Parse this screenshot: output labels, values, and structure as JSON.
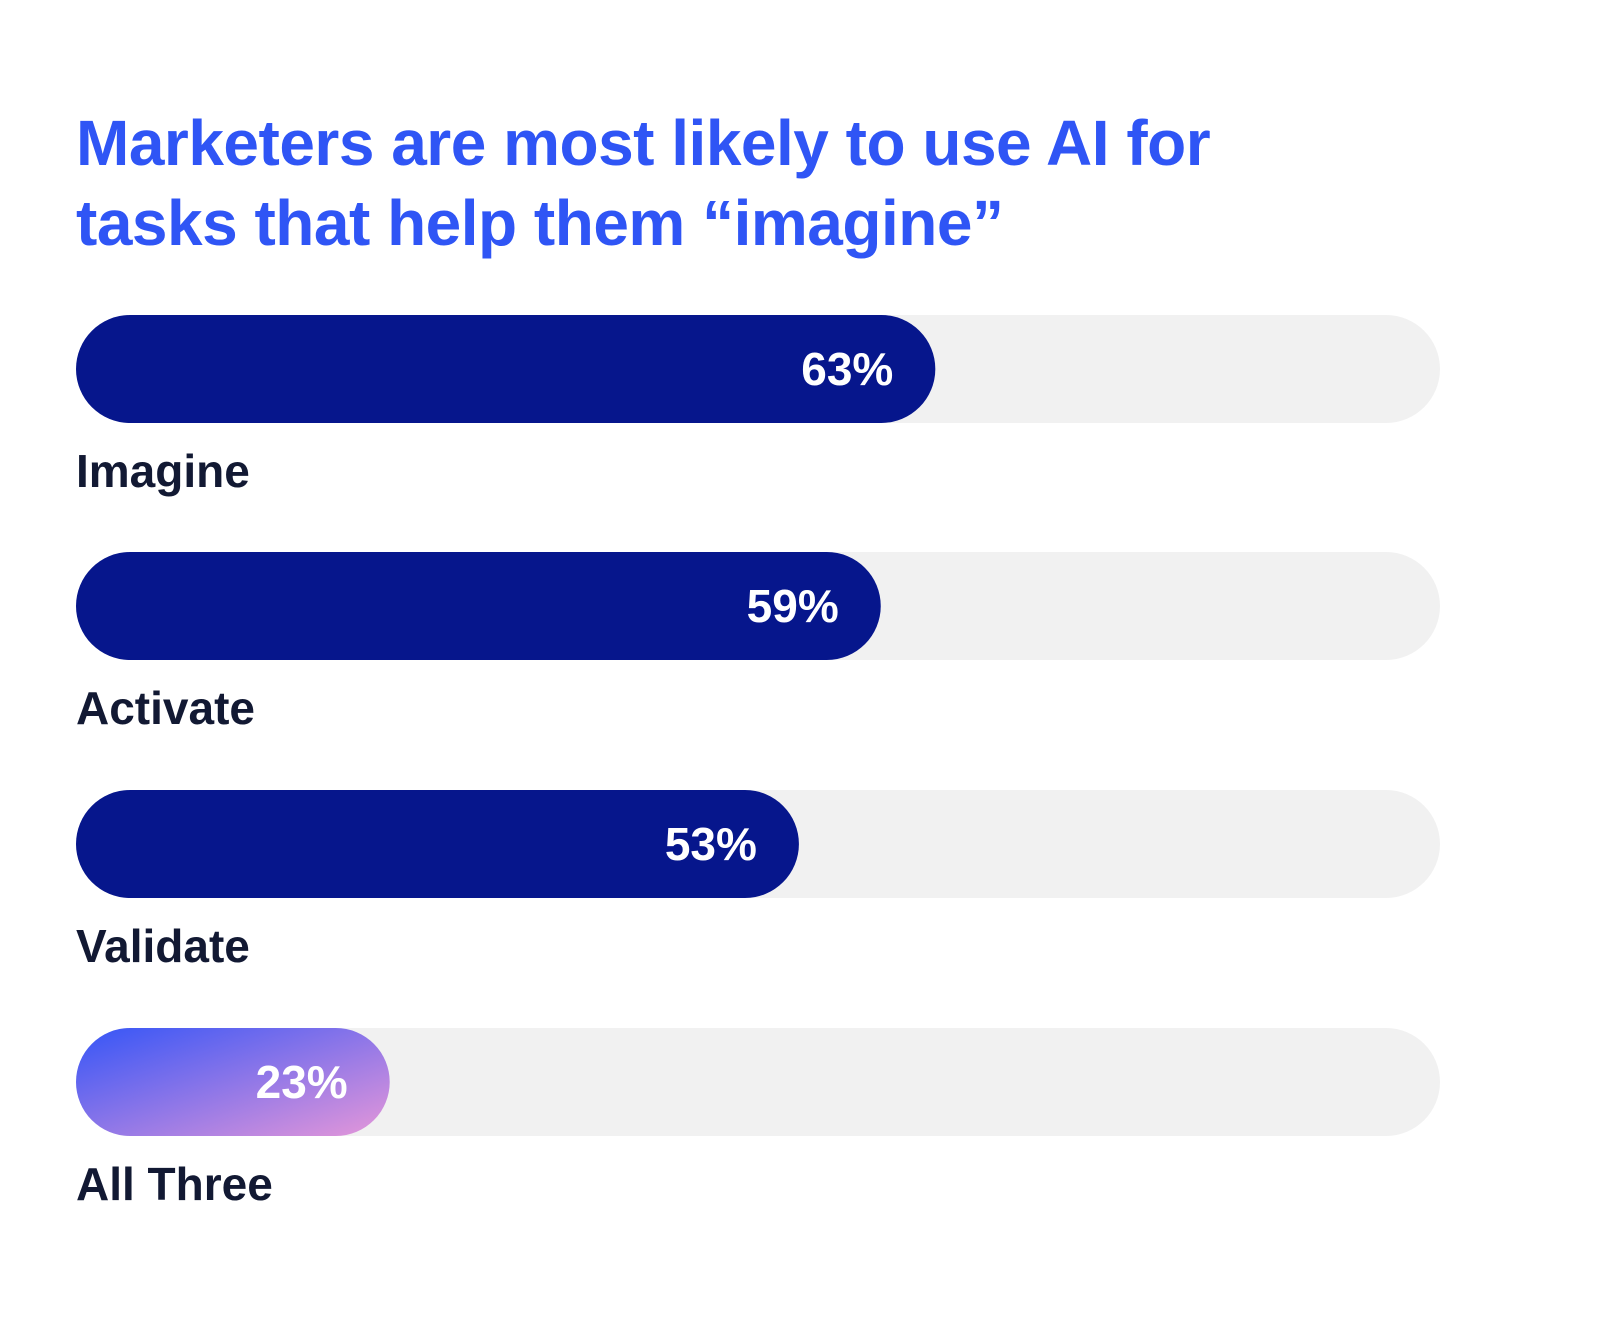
{
  "colors": {
    "title": "#2f55f5",
    "bar_fill": "#06168c",
    "track": "#f1f1f1",
    "category_text": "#121933",
    "value_text": "#ffffff",
    "gradient_start": "#3455f7",
    "gradient_end": "#e597d9"
  },
  "chart_data": {
    "type": "bar",
    "orientation": "horizontal",
    "title": "Marketers are most likely to use AI for\ntasks that help them “imagine”",
    "categories": [
      "Imagine",
      "Activate",
      "Validate",
      "All Three"
    ],
    "values": [
      63,
      59,
      53,
      23
    ],
    "value_labels": [
      "63%",
      "59%",
      "53%",
      "23%"
    ],
    "unit": "%",
    "xlim": [
      0,
      100
    ],
    "highlight": {
      "category": "All Three",
      "style": "gradient"
    },
    "grid": false,
    "legend": "none"
  }
}
